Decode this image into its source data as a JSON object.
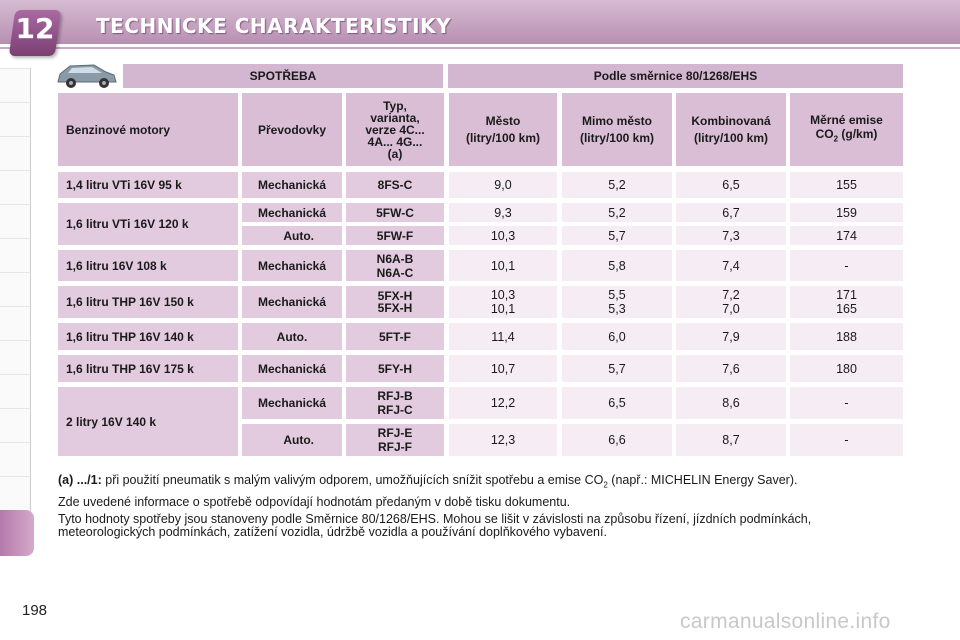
{
  "header": {
    "chapter_number": "12",
    "title": "TECHNICKE CHARAKTERISTIKY"
  },
  "table": {
    "group_headers": {
      "consumption": "SPOTŘEBA",
      "directive": "Podle směrnice 80/1268/EHS"
    },
    "columns": {
      "engine": "Benzinové motory",
      "gearbox": "Převodovky",
      "type": [
        "Typ,",
        "varianta,",
        "verze 4C...",
        "4A... 4G...",
        "(a)"
      ],
      "city": [
        "Město",
        "(litry/100 km)"
      ],
      "extra_urban": [
        "Mimo město",
        "(litry/100 km)"
      ],
      "combined": [
        "Kombinovaná",
        "(litry/100 km)"
      ],
      "co2": [
        "Měrné emise",
        "CO",
        "2",
        " (g/km)"
      ]
    },
    "engines": [
      "1,4 litru VTi 16V 95 k",
      "1,6 litru VTi 16V 120 k",
      "1,6 litru 16V 108 k",
      "1,6 litru THP 16V 150 k",
      "1,6 litru THP 16V 140 k",
      "1,6 litru THP 16V 175 k",
      "2 litry 16V 140 k"
    ],
    "rows": [
      {
        "gearbox": "Mechanická",
        "code": [
          "8FS-C"
        ],
        "city": [
          "9,0"
        ],
        "extra": [
          "5,2"
        ],
        "comb": [
          "6,5"
        ],
        "co2": [
          "155"
        ]
      },
      {
        "gearbox": "Mechanická",
        "code": [
          "5FW-C"
        ],
        "city": [
          "9,3"
        ],
        "extra": [
          "5,2"
        ],
        "comb": [
          "6,7"
        ],
        "co2": [
          "159"
        ]
      },
      {
        "gearbox": "Auto.",
        "code": [
          "5FW-F"
        ],
        "city": [
          "10,3"
        ],
        "extra": [
          "5,7"
        ],
        "comb": [
          "7,3"
        ],
        "co2": [
          "174"
        ]
      },
      {
        "gearbox": "Mechanická",
        "code": [
          "N6A-B",
          "N6A-C"
        ],
        "city": [
          "10,1"
        ],
        "extra": [
          "5,8"
        ],
        "comb": [
          "7,4"
        ],
        "co2": [
          "-"
        ]
      },
      {
        "gearbox": "Mechanická",
        "code": [
          "5FX-H",
          "5FX-H"
        ],
        "city": [
          "10,3",
          "10,1"
        ],
        "extra": [
          "5,5",
          "5,3"
        ],
        "comb": [
          "7,2",
          "7,0"
        ],
        "co2": [
          "171",
          "165"
        ]
      },
      {
        "gearbox": "Auto.",
        "code": [
          "5FT-F"
        ],
        "city": [
          "11,4"
        ],
        "extra": [
          "6,0"
        ],
        "comb": [
          "7,9"
        ],
        "co2": [
          "188"
        ]
      },
      {
        "gearbox": "Mechanická",
        "code": [
          "5FY-H"
        ],
        "city": [
          "10,7"
        ],
        "extra": [
          "5,7"
        ],
        "comb": [
          "7,6"
        ],
        "co2": [
          "180"
        ]
      },
      {
        "gearbox": "Mechanická",
        "code": [
          "RFJ-B",
          "RFJ-C"
        ],
        "city": [
          "12,2"
        ],
        "extra": [
          "6,5"
        ],
        "comb": [
          "8,6"
        ],
        "co2": [
          "-"
        ]
      },
      {
        "gearbox": "Auto.",
        "code": [
          "RFJ-E",
          "RFJ-F"
        ],
        "city": [
          "12,3"
        ],
        "extra": [
          "6,6"
        ],
        "comb": [
          "8,7"
        ],
        "co2": [
          "-"
        ]
      }
    ]
  },
  "notes": {
    "footnote_label": "(a) .../1:",
    "footnote_text_1": " při použití pneumatik s malým valivým odporem, umožňujících snížit spotřebu a emise CO",
    "footnote_sub": "2",
    "footnote_text_2": " (např.: MICHELIN Energy Saver).",
    "para2": "Zde uvedené informace o spotřebě odpovídají hodnotám předaným v době tisku dokumentu.",
    "para3": "Tyto hodnoty spotřeby jsou stanoveny podle Směrnice 80/1268/EHS. Mohou se lišit v závislosti na způsobu řízení, jízdních podmínkách, meteorologických podmínkách, zatížení vozidla, údržbě vozidla a používání doplňkového vybavení."
  },
  "footer": {
    "page_number": "198",
    "watermark": "carmanualsonline.info"
  }
}
